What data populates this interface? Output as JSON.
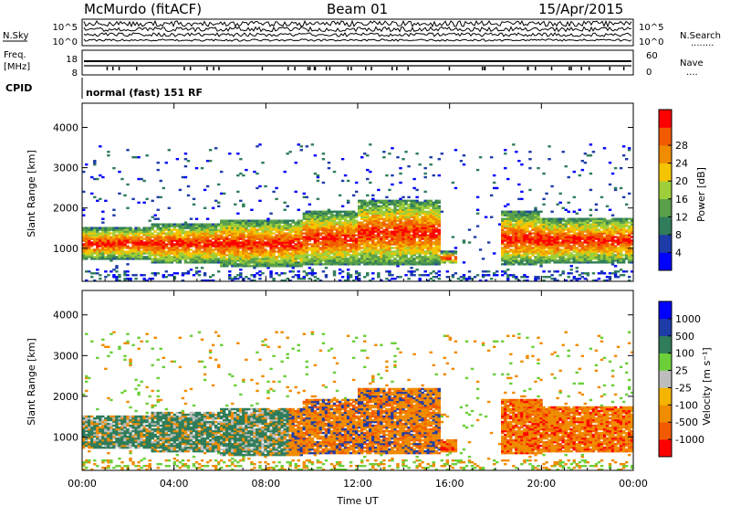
{
  "header": {
    "station": "McMurdo (fitACF)",
    "beam": "Beam 01",
    "date": "15/Apr/2015"
  },
  "summary_panel": {
    "left_label": "N.Sky",
    "left_ticks": [
      "10^5",
      "10^0"
    ],
    "right_ticks": [
      "10^5",
      "10^0"
    ],
    "right_label": "N.Search",
    "right_dots": "........"
  },
  "freq_panel": {
    "left_label_top": "Freq.",
    "left_label_unit": "[MHz]",
    "left_ticks": [
      "18",
      "8"
    ],
    "right_ticks": [
      "60",
      "0"
    ],
    "right_label": "Nave",
    "right_dots": "....",
    "cpid_label": "CPID",
    "cpid_text": "normal (fast) 151 RF"
  },
  "colors": {
    "power": [
      "#0000ff",
      "#1e3ca8",
      "#2f7d5a",
      "#5aa04a",
      "#9ecf3a",
      "#f5c400",
      "#f08c00",
      "#f25a00",
      "#ff0000"
    ],
    "velocity": [
      "#0000ff",
      "#1e3ca8",
      "#2f7d5a",
      "#6ccf3a",
      "#bdbdbd",
      "#f5b400",
      "#f08c00",
      "#f25a00",
      "#ff0000"
    ]
  },
  "chart_data": [
    {
      "type": "heatmap",
      "ylabel": "Slant Range [km]",
      "ylim": [
        180,
        4600
      ],
      "y_ticks": [
        "1000",
        "2000",
        "3000",
        "4000"
      ],
      "x_ticks": [
        "00:00",
        "04:00",
        "08:00",
        "12:00",
        "16:00",
        "20:00",
        "00:00"
      ],
      "xlim": [
        0,
        24
      ],
      "colorbar": {
        "label": "Power [dB]",
        "ticks": [
          "4",
          "8",
          "12",
          "16",
          "20",
          "24",
          "28"
        ],
        "range": [
          0,
          30
        ]
      }
    },
    {
      "type": "heatmap",
      "ylabel": "Slant Range [km]",
      "xlabel": "Time UT",
      "ylim": [
        180,
        4600
      ],
      "y_ticks": [
        "1000",
        "2000",
        "3000",
        "4000"
      ],
      "x_ticks": [
        "00:00",
        "04:00",
        "08:00",
        "12:00",
        "16:00",
        "20:00",
        "00:00"
      ],
      "xlim": [
        0,
        24
      ],
      "colorbar": {
        "label": "Velocity [m s⁻¹]",
        "ticks": [
          "1000",
          "500",
          "100",
          "25",
          "-25",
          "-100",
          "-500",
          "-1000"
        ],
        "range": [
          -1000,
          1000
        ]
      }
    }
  ]
}
